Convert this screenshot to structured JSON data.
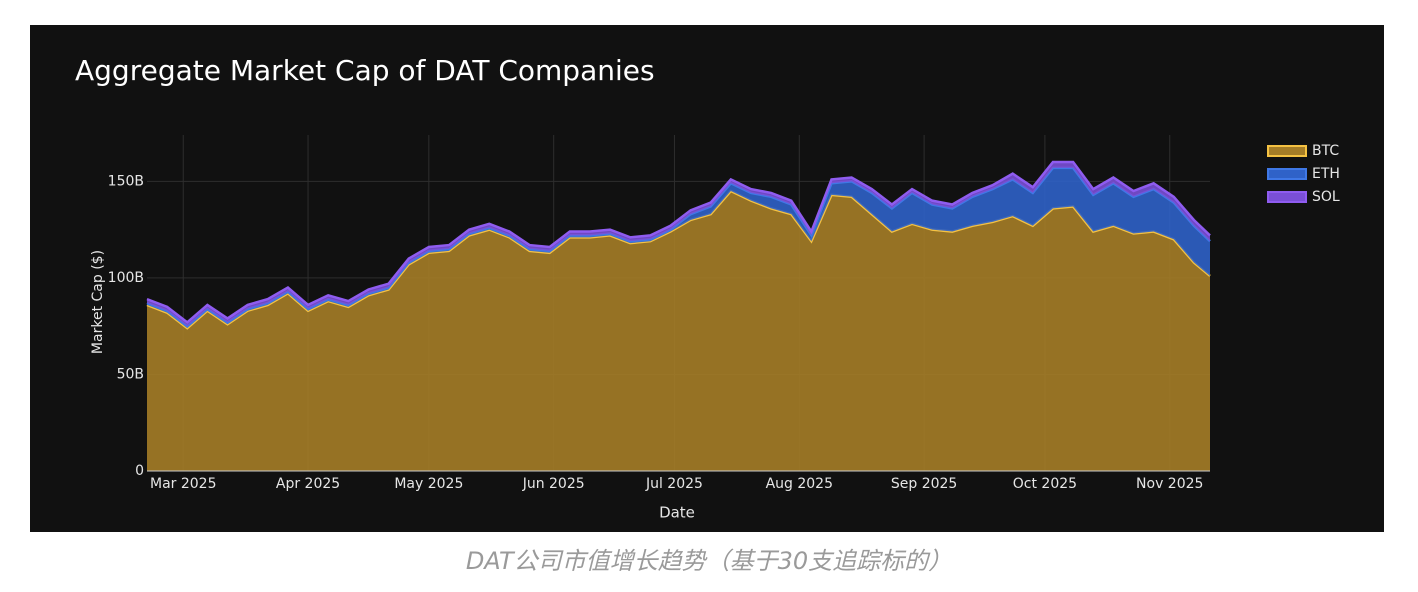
{
  "chart_data": {
    "type": "stacked_area",
    "title": "Aggregate Market Cap of DAT Companies",
    "xlabel": "Date",
    "ylabel": "Market Cap ($)",
    "caption": "DAT公司市值增长趋势（基于30支追踪标的）",
    "x": [
      "2025-02-20",
      "2025-02-25",
      "2025-03-02",
      "2025-03-07",
      "2025-03-12",
      "2025-03-17",
      "2025-03-22",
      "2025-03-27",
      "2025-04-01",
      "2025-04-06",
      "2025-04-11",
      "2025-04-16",
      "2025-04-21",
      "2025-04-26",
      "2025-05-01",
      "2025-05-06",
      "2025-05-11",
      "2025-05-16",
      "2025-05-21",
      "2025-05-26",
      "2025-05-31",
      "2025-06-05",
      "2025-06-10",
      "2025-06-15",
      "2025-06-20",
      "2025-06-25",
      "2025-06-30",
      "2025-07-05",
      "2025-07-10",
      "2025-07-15",
      "2025-07-20",
      "2025-07-25",
      "2025-07-30",
      "2025-08-04",
      "2025-08-09",
      "2025-08-14",
      "2025-08-19",
      "2025-08-24",
      "2025-08-29",
      "2025-09-03",
      "2025-09-08",
      "2025-09-13",
      "2025-09-18",
      "2025-09-23",
      "2025-09-28",
      "2025-10-03",
      "2025-10-08",
      "2025-10-13",
      "2025-10-18",
      "2025-10-23",
      "2025-10-28",
      "2025-11-02",
      "2025-11-07",
      "2025-11-11"
    ],
    "series": [
      {
        "name": "BTC",
        "color": "#f5c242",
        "fill": "#a57d27",
        "values": [
          86,
          82,
          74,
          83,
          76,
          83,
          86,
          92,
          83,
          88,
          85,
          91,
          94,
          107,
          113,
          114,
          122,
          125,
          121,
          114,
          113,
          121,
          121,
          122,
          118,
          119,
          124,
          130,
          133,
          145,
          140,
          136,
          133,
          119,
          143,
          142,
          133,
          124,
          128,
          125,
          124,
          127,
          129,
          132,
          127,
          136,
          137,
          124,
          127,
          123,
          124,
          120,
          108,
          101
        ]
      },
      {
        "name": "ETH",
        "color": "#3f78e6",
        "fill": "#2f62c8",
        "values": [
          1,
          1,
          1,
          1,
          1,
          1,
          1,
          1,
          1,
          1,
          1,
          1,
          1,
          1,
          1,
          1,
          1,
          1,
          1,
          1,
          1,
          1,
          1,
          1,
          1,
          1,
          1,
          3,
          4,
          4,
          4,
          6,
          5,
          3,
          6,
          8,
          11,
          12,
          16,
          13,
          12,
          15,
          17,
          19,
          17,
          21,
          20,
          19,
          22,
          19,
          22,
          19,
          19,
          18
        ]
      },
      {
        "name": "SOL",
        "color": "#8f5cf0",
        "fill": "#7a4fd6",
        "values": [
          2,
          2,
          2,
          2,
          2,
          2,
          2,
          2,
          2,
          2,
          2,
          2,
          2,
          2,
          2,
          2,
          2,
          2,
          2,
          2,
          2,
          2,
          2,
          2,
          2,
          2,
          2,
          2,
          2,
          2,
          2,
          2,
          2,
          2,
          2,
          2,
          2,
          2,
          2,
          2,
          2,
          2,
          2,
          3,
          3,
          3,
          3,
          3,
          3,
          3,
          3,
          3,
          3,
          3
        ]
      }
    ],
    "xlim": [
      "2025-02-20",
      "2025-11-11"
    ],
    "xticks": [
      {
        "value": "2025-03-01",
        "label": "Mar 2025"
      },
      {
        "value": "2025-04-01",
        "label": "Apr 2025"
      },
      {
        "value": "2025-05-01",
        "label": "May 2025"
      },
      {
        "value": "2025-06-01",
        "label": "Jun 2025"
      },
      {
        "value": "2025-07-01",
        "label": "Jul 2025"
      },
      {
        "value": "2025-08-01",
        "label": "Aug 2025"
      },
      {
        "value": "2025-09-01",
        "label": "Sep 2025"
      },
      {
        "value": "2025-10-01",
        "label": "Oct 2025"
      },
      {
        "value": "2025-11-01",
        "label": "Nov 2025"
      }
    ],
    "ylim": [
      0,
      174
    ],
    "yticks": [
      0,
      {
        "value": 50,
        "label": "50B"
      },
      {
        "value": 100,
        "label": "100B"
      },
      {
        "value": 150,
        "label": "150B"
      }
    ],
    "grid": true,
    "legend": "right"
  }
}
